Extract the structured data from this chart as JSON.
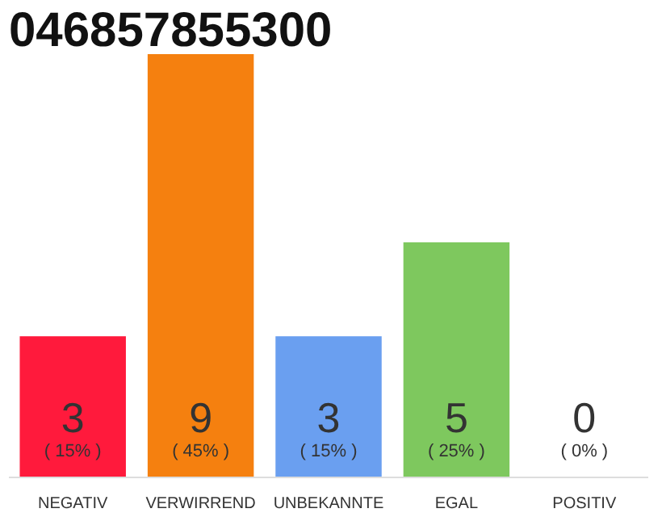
{
  "chart_data": {
    "type": "bar",
    "title": "046857855300",
    "categories": [
      "NEGATIV",
      "VERWIRREND",
      "UNBEKANNTE",
      "EGAL",
      "POSITIV"
    ],
    "values": [
      3,
      9,
      3,
      5,
      0
    ],
    "colors": [
      "#ff1a3c",
      "#f5800f",
      "#6a9ff0",
      "#7ec85e",
      "#eeeeee"
    ],
    "value_labels": [
      "3\n( 15% )",
      "9\n( 45% )",
      "3\n( 15% )",
      "5\n( 25% )",
      "0\n( 0% )"
    ],
    "grid": false
  }
}
